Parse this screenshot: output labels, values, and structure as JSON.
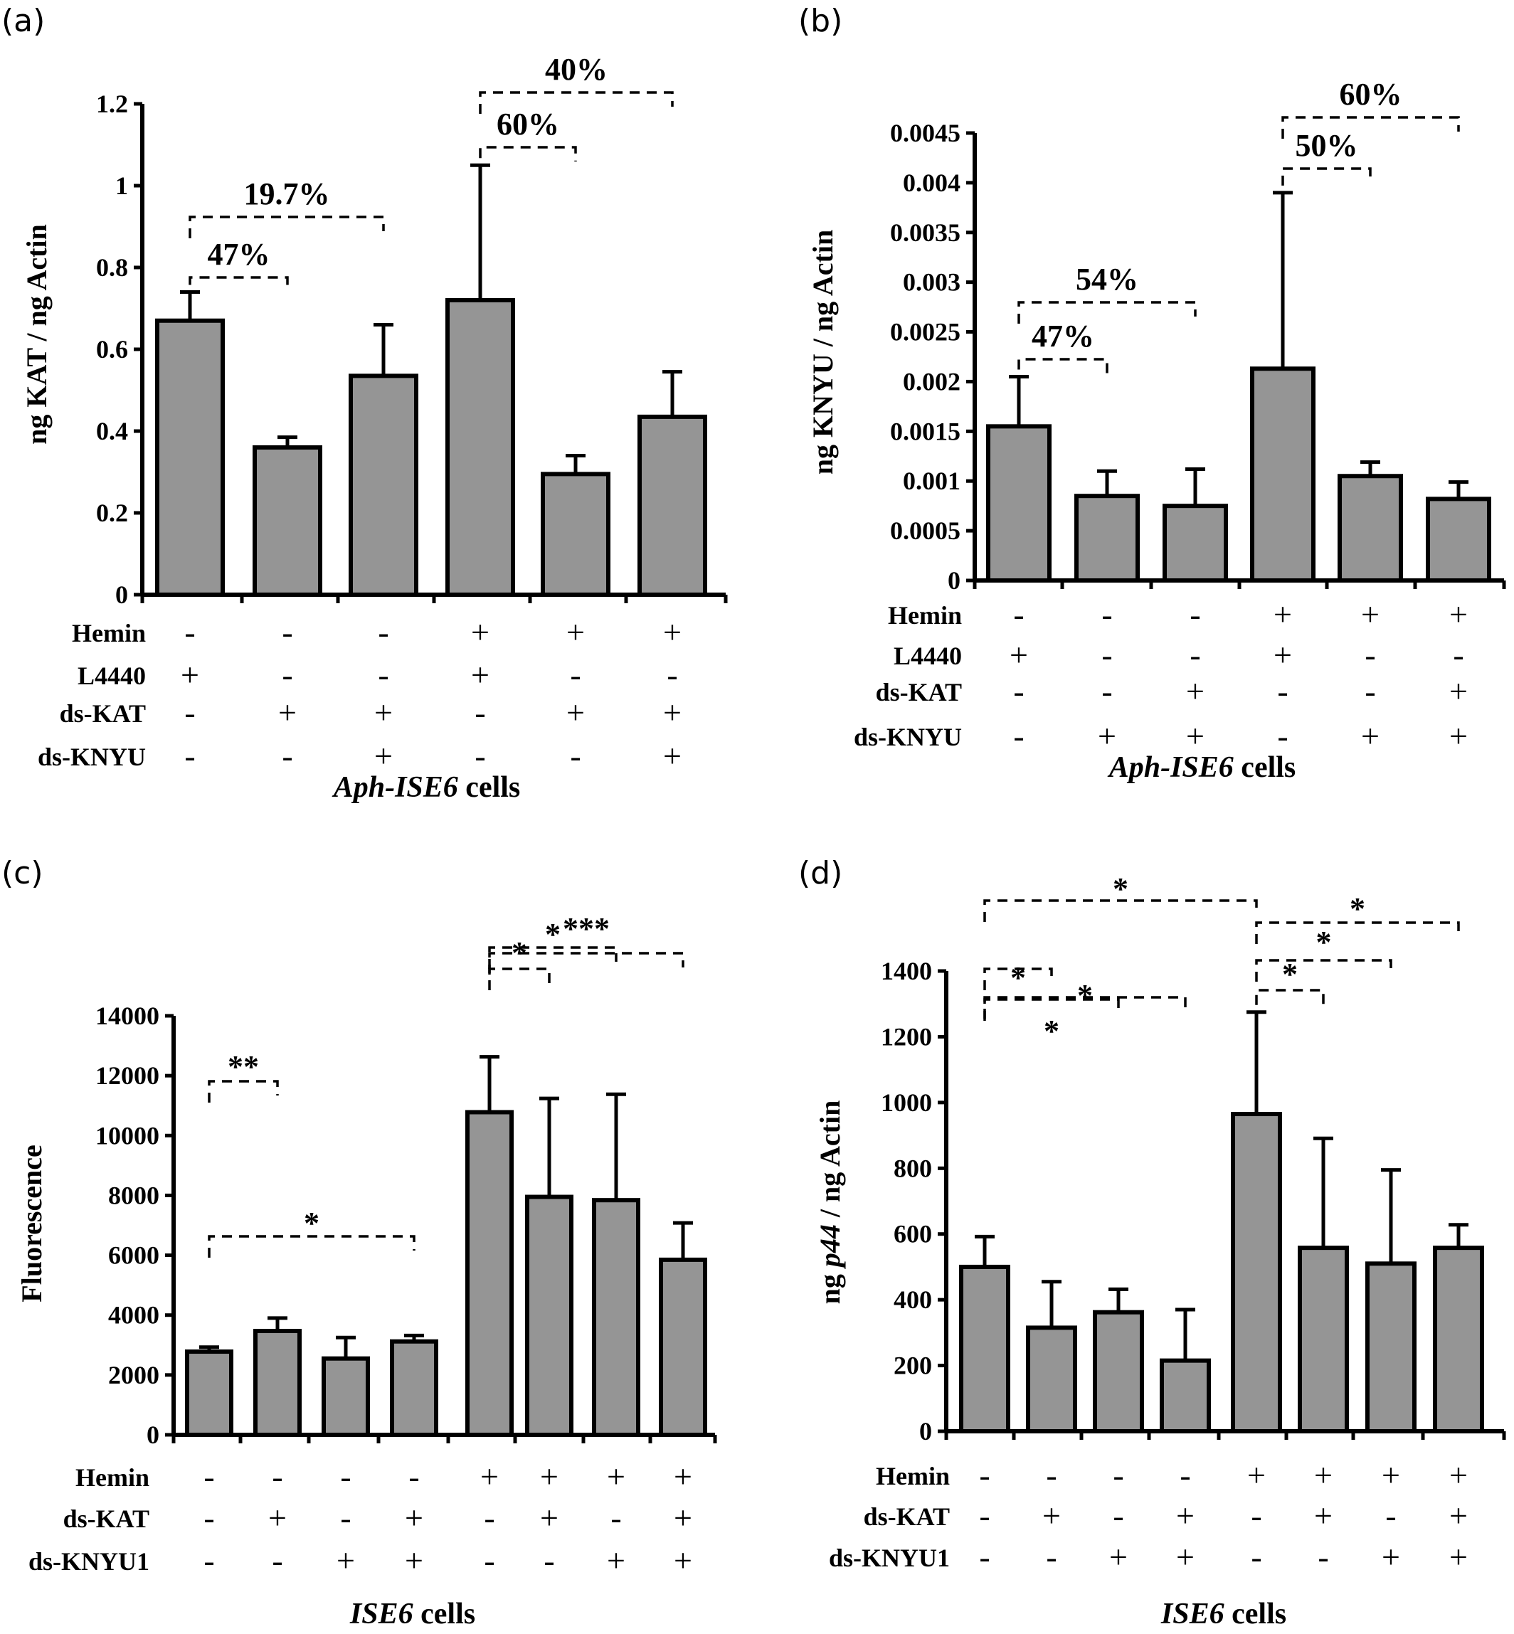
{
  "chart_data": [
    {
      "panel": "(a)",
      "type": "bar",
      "ylabel": "ng KAT / ng Actin",
      "ylim": [
        0,
        1.2
      ],
      "yticks": [
        "0",
        "0.2",
        "0.4",
        "0.6",
        "0.8",
        "1",
        "1.2"
      ],
      "values": [
        0.67,
        0.36,
        0.535,
        0.72,
        0.295,
        0.435
      ],
      "errors": [
        0.07,
        0.025,
        0.125,
        0.33,
        0.045,
        0.11
      ],
      "x_title_italic": "Aph-ISE6",
      "x_title_rest": " cells",
      "factors": [
        {
          "label": "Hemin",
          "signs": [
            "-",
            "-",
            "-",
            "+",
            "+",
            "+"
          ]
        },
        {
          "label": "L4440",
          "signs": [
            "+",
            "-",
            "-",
            "+",
            "-",
            "-"
          ]
        },
        {
          "label": "ds-KAT",
          "signs": [
            "-",
            "+",
            "+",
            "-",
            "+",
            "+"
          ]
        },
        {
          "label": "ds-KNYU",
          "signs": [
            "-",
            "-",
            "+",
            "-",
            "-",
            "+"
          ]
        }
      ],
      "annotations": [
        {
          "from": 0,
          "to": 1,
          "text": "47%"
        },
        {
          "from": 0,
          "to": 2,
          "text": "19.7%"
        },
        {
          "from": 3,
          "to": 4,
          "text": "60%"
        },
        {
          "from": 3,
          "to": 5,
          "text": "40%"
        }
      ]
    },
    {
      "panel": "(b)",
      "type": "bar",
      "ylabel": "ng KNYU / ng Actin",
      "ylim": [
        0,
        0.0045
      ],
      "yticks": [
        "0",
        "0.0005",
        "0.001",
        "0.0015",
        "0.002",
        "0.0025",
        "0.003",
        "0.0035",
        "0.004",
        "0.0045"
      ],
      "values": [
        0.00155,
        0.00085,
        0.00075,
        0.00213,
        0.00105,
        0.00082
      ],
      "errors": [
        0.0005,
        0.00025,
        0.00037,
        0.00177,
        0.00014,
        0.00017
      ],
      "x_title_italic": "Aph-ISE6",
      "x_title_rest": " cells",
      "factors": [
        {
          "label": "Hemin",
          "signs": [
            "-",
            "-",
            "-",
            "+",
            "+",
            "+"
          ]
        },
        {
          "label": "L4440",
          "signs": [
            "+",
            "-",
            "-",
            "+",
            "-",
            "-"
          ]
        },
        {
          "label": "ds-KAT",
          "signs": [
            "-",
            "-",
            "+",
            "-",
            "-",
            "+"
          ]
        },
        {
          "label": "ds-KNYU",
          "signs": [
            "-",
            "+",
            "+",
            "-",
            "+",
            "+"
          ]
        }
      ],
      "annotations": [
        {
          "from": 0,
          "to": 1,
          "text": "47%"
        },
        {
          "from": 0,
          "to": 2,
          "text": "54%"
        },
        {
          "from": 3,
          "to": 4,
          "text": "50%"
        },
        {
          "from": 3,
          "to": 5,
          "text": "60%"
        }
      ]
    },
    {
      "panel": "(c)",
      "type": "bar",
      "ylabel": "Fluorescence",
      "ylim": [
        0,
        14000
      ],
      "yticks": [
        "0",
        "2000",
        "4000",
        "6000",
        "8000",
        "10000",
        "12000",
        "14000"
      ],
      "values": [
        2780,
        3470,
        2550,
        3120,
        10780,
        7950,
        7840,
        5850
      ],
      "errors": [
        150,
        430,
        700,
        200,
        1850,
        3290,
        3540,
        1230
      ],
      "x_title_italic": "ISE6",
      "x_title_rest": " cells",
      "factors": [
        {
          "label": "Hemin",
          "signs": [
            "-",
            "-",
            "-",
            "-",
            "+",
            "+",
            "+",
            "+"
          ]
        },
        {
          "label": "ds-KAT",
          "signs": [
            "-",
            "+",
            "-",
            "+",
            "-",
            "+",
            "-",
            "+"
          ]
        },
        {
          "label": "ds-KNYU1",
          "signs": [
            "-",
            "-",
            "+",
            "+",
            "-",
            "-",
            "+",
            "+"
          ]
        }
      ],
      "annotations": [
        {
          "from": 0,
          "to": 1,
          "text": "**"
        },
        {
          "from": 0,
          "to": 3,
          "text": "*"
        },
        {
          "from": 4,
          "to": 5,
          "text": "*"
        },
        {
          "from": 4,
          "to": 6,
          "text": "*"
        },
        {
          "from": 4,
          "to": 7,
          "text": "***"
        }
      ]
    },
    {
      "panel": "(d)",
      "type": "bar",
      "ylabel_pre": "ng ",
      "ylabel_italic": "p44",
      "ylabel_post": " / ng Actin",
      "ylim": [
        0,
        1400
      ],
      "yticks": [
        "0",
        "200",
        "400",
        "600",
        "800",
        "1000",
        "1200",
        "1400"
      ],
      "values": [
        500,
        315,
        362,
        215,
        965,
        558,
        510,
        558
      ],
      "errors": [
        92,
        140,
        70,
        155,
        310,
        333,
        285,
        70
      ],
      "x_title_italic": "ISE6",
      "x_title_rest": " cells",
      "factors": [
        {
          "label": "Hemin",
          "signs": [
            "-",
            "-",
            "-",
            "-",
            "+",
            "+",
            "+",
            "+"
          ]
        },
        {
          "label": "ds-KAT",
          "signs": [
            "-",
            "+",
            "-",
            "+",
            "-",
            "+",
            "-",
            "+"
          ]
        },
        {
          "label": "ds-KNYU1",
          "signs": [
            "-",
            "-",
            "+",
            "+",
            "-",
            "-",
            "+",
            "+"
          ]
        }
      ],
      "annotations": [
        {
          "from": 0,
          "to": 1,
          "text": "*"
        },
        {
          "from": 0,
          "to": 2,
          "text": "*"
        },
        {
          "from": 0,
          "to": 3,
          "text": "*"
        },
        {
          "from": 0,
          "to": 4,
          "text": "*"
        },
        {
          "from": 4,
          "to": 5,
          "text": "*"
        },
        {
          "from": 4,
          "to": 6,
          "text": "*"
        },
        {
          "from": 4,
          "to": 7,
          "text": "*"
        }
      ]
    }
  ]
}
